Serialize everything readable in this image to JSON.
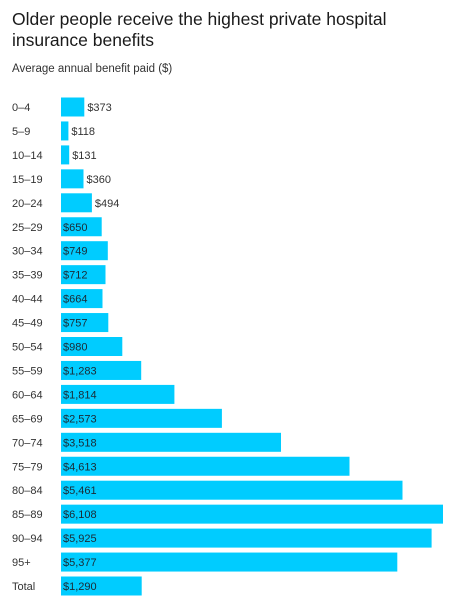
{
  "title": "Older people receive the highest private hospital insurance benefits",
  "subtitle": "Average annual benefit paid ($)",
  "colors": {
    "bar": "#00ccff",
    "text": "#333333"
  },
  "chart_data": {
    "type": "bar",
    "orientation": "horizontal",
    "title": "Older people receive the highest private hospital insurance benefits",
    "subtitle": "Average annual benefit paid ($)",
    "categories": [
      "0–4",
      "5–9",
      "10–14",
      "15–19",
      "20–24",
      "25–29",
      "30–34",
      "35–39",
      "40–44",
      "45–49",
      "50–54",
      "55–59",
      "60–64",
      "65–69",
      "70–74",
      "75–79",
      "80–84",
      "85–89",
      "90–94",
      "95+",
      "Total"
    ],
    "values": [
      373,
      118,
      131,
      360,
      494,
      650,
      749,
      712,
      664,
      757,
      980,
      1283,
      1814,
      2573,
      3518,
      4613,
      5461,
      6108,
      5925,
      5377,
      1290
    ],
    "labels": [
      "$373",
      "$118",
      "$131",
      "$360",
      "$494",
      "$650",
      "$749",
      "$712",
      "$664",
      "$757",
      "$980",
      "$1,283",
      "$1,814",
      "$2,573",
      "$3,518",
      "$4,613",
      "$5,461",
      "$6,108",
      "$5,925",
      "$5,377",
      "$1,290"
    ],
    "xlim": [
      0,
      6108
    ],
    "grid": false,
    "legend": "none"
  }
}
